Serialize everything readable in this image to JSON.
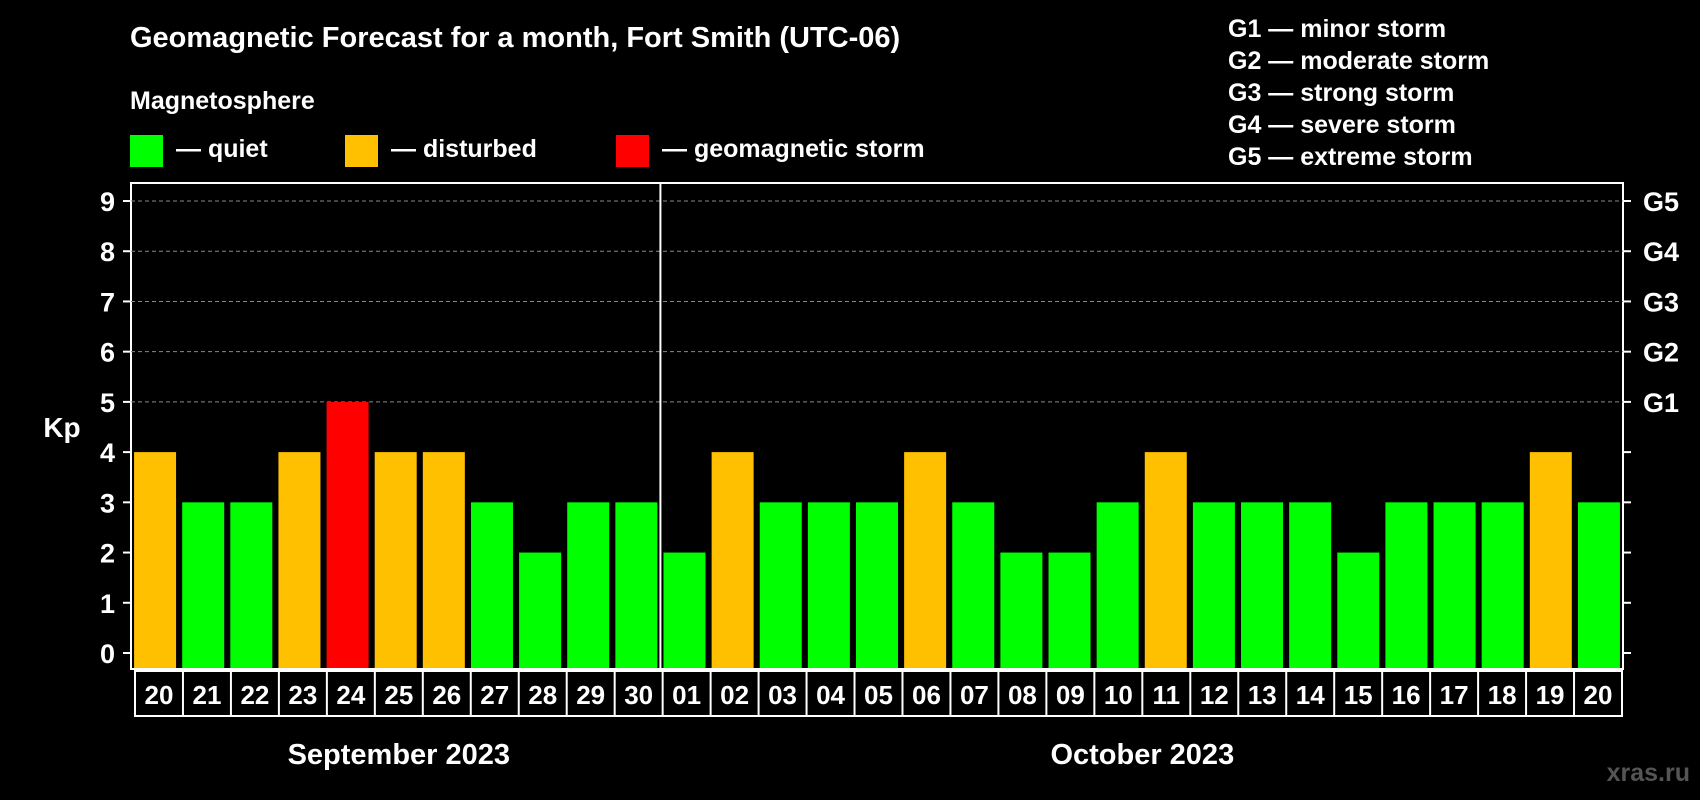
{
  "title": "Geomagnetic Forecast for a month, Fort Smith (UTC-06)",
  "legend": {
    "heading": "Magnetosphere",
    "items": [
      {
        "label": "— quiet",
        "color": "#00ff00"
      },
      {
        "label": "— disturbed",
        "color": "#ffc000"
      },
      {
        "label": "— geomagnetic storm",
        "color": "#ff0000"
      }
    ]
  },
  "storm_scale": [
    "G1 — minor storm",
    "G2 — moderate storm",
    "G3 — strong storm",
    "G4 — severe storm",
    "G5 — extreme storm"
  ],
  "watermark": "xras.ru",
  "chart_data": {
    "type": "bar",
    "ylabel": "Kp",
    "ylim": [
      0,
      9
    ],
    "yticks": [
      "0",
      "1",
      "2",
      "3",
      "4",
      "5",
      "6",
      "7",
      "8",
      "9"
    ],
    "right_axis_labels": [
      {
        "kp": 5,
        "label": "G1"
      },
      {
        "kp": 6,
        "label": "G2"
      },
      {
        "kp": 7,
        "label": "G3"
      },
      {
        "kp": 8,
        "label": "G4"
      },
      {
        "kp": 9,
        "label": "G5"
      }
    ],
    "categories": [
      "20",
      "21",
      "22",
      "23",
      "24",
      "25",
      "26",
      "27",
      "28",
      "29",
      "30",
      "01",
      "02",
      "03",
      "04",
      "05",
      "06",
      "07",
      "08",
      "09",
      "10",
      "11",
      "12",
      "13",
      "14",
      "15",
      "16",
      "17",
      "18",
      "19",
      "20"
    ],
    "values": [
      4,
      3,
      3,
      4,
      5,
      4,
      4,
      3,
      2,
      3,
      3,
      2,
      4,
      3,
      3,
      3,
      4,
      3,
      2,
      2,
      3,
      4,
      3,
      3,
      3,
      2,
      3,
      3,
      3,
      4,
      3
    ],
    "months": [
      {
        "label": "September 2023",
        "start": 0,
        "end": 10
      },
      {
        "label": "October 2023",
        "start": 11,
        "end": 30
      }
    ],
    "grid": true
  }
}
